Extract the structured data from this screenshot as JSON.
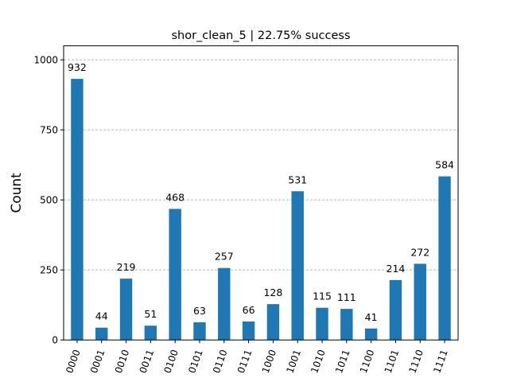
{
  "chart_data": {
    "type": "bar",
    "title": "shor_clean_5 | 22.75% success",
    "xlabel": "",
    "ylabel": "Count",
    "categories": [
      "0000",
      "0001",
      "0010",
      "0011",
      "0100",
      "0101",
      "0110",
      "0111",
      "1000",
      "1001",
      "1010",
      "1011",
      "1100",
      "1101",
      "1110",
      "1111"
    ],
    "values": [
      932,
      44,
      219,
      51,
      468,
      63,
      257,
      66,
      128,
      531,
      115,
      111,
      41,
      214,
      272,
      584
    ],
    "data_labels": [
      "932",
      "44",
      "219",
      "51",
      "468",
      "63",
      "257",
      "66",
      "128",
      "531",
      "115",
      "111",
      "41",
      "214",
      "272",
      "584"
    ],
    "ylim": [
      0,
      1050
    ],
    "yticks": [
      0,
      250,
      500,
      750,
      1000
    ],
    "ytick_labels": [
      "0",
      "250",
      "500",
      "750",
      "1000"
    ],
    "grid": "y-dashed",
    "bar_color": "#1f77b4",
    "grid_color": "#b0b0b0"
  }
}
